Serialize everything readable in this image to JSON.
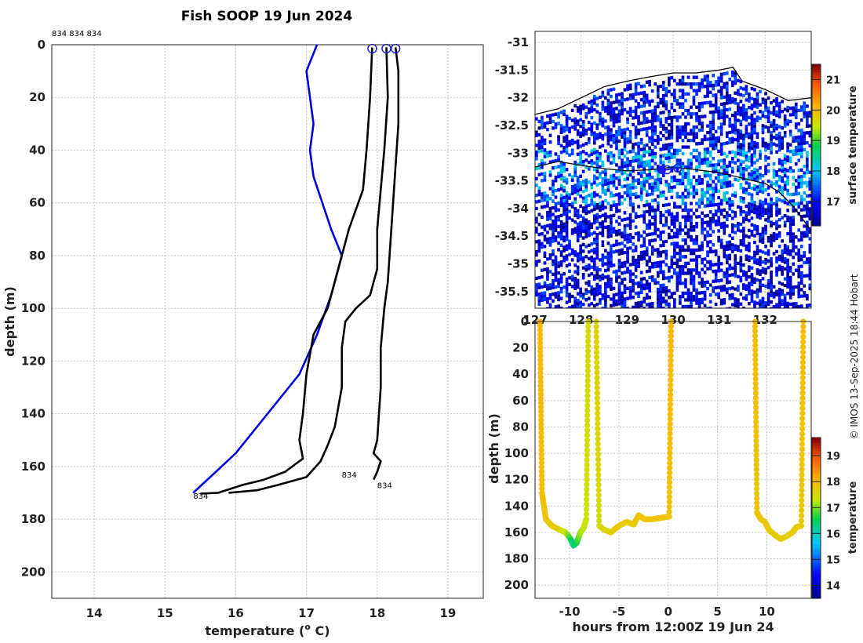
{
  "title": "Fish SOOP 19 Jun 2024",
  "copyright": "© IMOS 13-Sep-2025 18:44 Hobart",
  "colors": {
    "clim_profile": "#0000dd",
    "xbt_profile": "#000000",
    "coast": "#000000",
    "track": "#1a1aee"
  },
  "chart_data": [
    {
      "id": "profile",
      "type": "line",
      "xlabel": "temperature (",
      "xlabel_sup": "o",
      "xlabel_tail": " C)",
      "ylabel": "depth (m)",
      "xlim": [
        13.4,
        19.5
      ],
      "ylim": [
        210,
        0
      ],
      "xticks": [
        14,
        15,
        16,
        17,
        18,
        19
      ],
      "yticks": [
        0,
        20,
        40,
        60,
        80,
        100,
        120,
        140,
        160,
        180,
        200
      ],
      "top_annotation": "834 834 834",
      "series": [
        {
          "name": "climatology",
          "color": "#0000dd",
          "points": [
            [
              17.15,
              0
            ],
            [
              17.0,
              10
            ],
            [
              17.1,
              30
            ],
            [
              17.05,
              40
            ],
            [
              17.1,
              50
            ],
            [
              17.35,
              70
            ],
            [
              17.5,
              80
            ],
            [
              17.35,
              95
            ],
            [
              17.15,
              110
            ],
            [
              16.9,
              125
            ],
            [
              16.45,
              140
            ],
            [
              16.0,
              155
            ],
            [
              15.8,
              160
            ],
            [
              15.4,
              170
            ]
          ]
        },
        {
          "name": "profile 1",
          "color": "#000000",
          "points": [
            [
              17.93,
              1
            ],
            [
              17.9,
              20
            ],
            [
              17.85,
              40
            ],
            [
              17.8,
              55
            ],
            [
              17.6,
              70
            ],
            [
              17.45,
              85
            ],
            [
              17.3,
              100
            ],
            [
              17.1,
              110
            ],
            [
              17.0,
              125
            ],
            [
              16.95,
              140
            ],
            [
              16.9,
              150
            ],
            [
              16.95,
              157
            ],
            [
              16.7,
              162
            ],
            [
              16.4,
              165
            ],
            [
              16.1,
              167
            ],
            [
              15.75,
              170
            ],
            [
              15.5,
              170.3
            ]
          ],
          "label": "834",
          "label_at": [
            15.4,
            171
          ]
        },
        {
          "name": "profile 2",
          "color": "#000000",
          "points": [
            [
              18.13,
              1
            ],
            [
              18.15,
              20
            ],
            [
              18.1,
              40
            ],
            [
              18.05,
              55
            ],
            [
              18.0,
              70
            ],
            [
              18.0,
              85
            ],
            [
              17.9,
              95
            ],
            [
              17.7,
              100
            ],
            [
              17.55,
              105
            ],
            [
              17.5,
              115
            ],
            [
              17.5,
              130
            ],
            [
              17.4,
              145
            ],
            [
              17.3,
              152
            ],
            [
              17.2,
              158
            ],
            [
              17.0,
              164
            ],
            [
              16.6,
              167
            ],
            [
              16.3,
              169
            ],
            [
              15.9,
              170
            ]
          ],
          "label": "834",
          "label_at": [
            17.5,
            163
          ]
        },
        {
          "name": "profile 3",
          "color": "#000000",
          "points": [
            [
              18.26,
              1
            ],
            [
              18.3,
              10
            ],
            [
              18.3,
              30
            ],
            [
              18.25,
              50
            ],
            [
              18.2,
              70
            ],
            [
              18.15,
              90
            ],
            [
              18.1,
              100
            ],
            [
              18.05,
              115
            ],
            [
              18.05,
              130
            ],
            [
              18.0,
              150
            ],
            [
              17.95,
              155
            ],
            [
              18.05,
              158
            ],
            [
              18.0,
              162
            ],
            [
              17.95,
              165
            ]
          ],
          "label": "834",
          "label_at": [
            18.0,
            167
          ]
        }
      ],
      "start_markers": [
        17.93,
        18.13,
        18.26
      ]
    },
    {
      "id": "map",
      "type": "heatmap",
      "xlim": [
        127,
        133
      ],
      "ylim": [
        -35.8,
        -30.8
      ],
      "xticks": [
        127,
        128,
        129,
        130,
        131,
        132
      ],
      "xtick_labels": [
        "127",
        "128",
        "129",
        "130",
        "131",
        "132"
      ],
      "yticks": [
        -31,
        -31.5,
        -32,
        -32.5,
        -33,
        -33.5,
        -34,
        -34.5,
        -35,
        -35.5
      ],
      "colorbar_label": "surface temperature",
      "clim": [
        16.2,
        21.5
      ],
      "colorbar_ticks": [
        17,
        18,
        19,
        20,
        21
      ],
      "coastline_south_australia": [
        [
          127.0,
          -32.3
        ],
        [
          127.5,
          -32.2
        ],
        [
          128.0,
          -32.0
        ],
        [
          128.5,
          -31.8
        ],
        [
          129.0,
          -31.7
        ],
        [
          129.5,
          -31.62
        ],
        [
          130.0,
          -31.55
        ],
        [
          130.5,
          -31.55
        ],
        [
          131.0,
          -31.5
        ],
        [
          131.3,
          -31.45
        ],
        [
          131.5,
          -31.7
        ],
        [
          132.0,
          -31.85
        ],
        [
          132.5,
          -32.05
        ],
        [
          133.0,
          -32.0
        ]
      ],
      "front_line": [
        [
          127.0,
          -33.25
        ],
        [
          127.5,
          -33.15
        ],
        [
          128.0,
          -33.22
        ],
        [
          128.5,
          -33.28
        ],
        [
          129.0,
          -33.32
        ],
        [
          129.5,
          -33.3
        ],
        [
          130.0,
          -33.25
        ],
        [
          130.5,
          -33.3
        ],
        [
          131.0,
          -33.35
        ],
        [
          131.5,
          -33.45
        ],
        [
          132.0,
          -33.55
        ],
        [
          132.3,
          -33.7
        ],
        [
          132.6,
          -33.95
        ],
        [
          133.0,
          -34.4
        ]
      ],
      "track": [
        [
          129.7,
          -33.3
        ],
        [
          129.85,
          -33.3
        ],
        [
          130.05,
          -33.27
        ],
        [
          130.15,
          -33.27
        ]
      ],
      "track_markers_open": [
        [
          129.87,
          -33.3
        ],
        [
          130.1,
          -33.27
        ]
      ],
      "track_marker_filled": [
        129.75,
        -33.3
      ]
    },
    {
      "id": "section",
      "type": "scatter",
      "xlabel": "hours from 12:00Z 19 Jun 24",
      "ylabel": "depth (m)",
      "xlim": [
        -13.5,
        14.5
      ],
      "ylim": [
        210,
        0
      ],
      "xticks": [
        -10,
        -5,
        0,
        5,
        10
      ],
      "yticks": [
        0,
        20,
        40,
        60,
        80,
        100,
        120,
        140,
        160,
        180,
        200
      ],
      "colorbar_label": "temperature",
      "clim": [
        13.5,
        19.7
      ],
      "colorbar_ticks": [
        14,
        15,
        16,
        17,
        18,
        19
      ],
      "casts": [
        {
          "x": [
            -13.0,
            -12.8,
            -12.4,
            -11.8,
            -11.0,
            -10.4,
            -9.9,
            -9.6,
            -9.3,
            -8.9,
            -8.6,
            -8.3,
            -8.1
          ],
          "depth": [
            0,
            130,
            150,
            155,
            158,
            160,
            165,
            170,
            168,
            160,
            157,
            150,
            0
          ],
          "temp": [
            18.1,
            18.0,
            17.9,
            17.8,
            17.7,
            17.4,
            16.8,
            16.2,
            16.6,
            17.2,
            17.3,
            17.4,
            17.6
          ]
        },
        {
          "x": [
            -7.3,
            -7.0,
            -6.5,
            -5.8,
            -5.0,
            -4.2,
            -3.5,
            -3.0,
            -2.4,
            -1.6,
            -0.8,
            0.1,
            0.3
          ],
          "depth": [
            0,
            155,
            158,
            160,
            155,
            152,
            154,
            147,
            150,
            150,
            149,
            148,
            0
          ],
          "temp": [
            17.7,
            17.5,
            17.6,
            17.7,
            17.8,
            17.8,
            17.8,
            17.9,
            17.9,
            17.9,
            17.9,
            17.9,
            18.1
          ]
        },
        {
          "x": [
            8.8,
            9.0,
            9.4,
            9.8,
            10.2,
            10.8,
            11.4,
            12.0,
            12.6,
            13.0,
            13.5,
            13.7
          ],
          "depth": [
            0,
            145,
            150,
            152,
            158,
            162,
            165,
            163,
            160,
            156,
            155,
            0
          ],
          "temp": [
            18.0,
            17.9,
            17.9,
            17.9,
            17.8,
            17.8,
            17.8,
            17.8,
            17.8,
            17.8,
            17.8,
            18.0
          ]
        }
      ]
    }
  ]
}
